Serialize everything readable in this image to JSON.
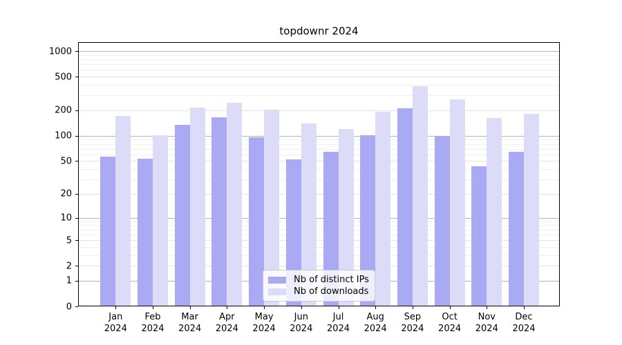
{
  "title": "topdownr 2024",
  "chart_data": {
    "type": "bar",
    "title": "topdownr 2024",
    "scale": "log1p",
    "categories": [
      "Jan",
      "Feb",
      "Mar",
      "Apr",
      "May",
      "Jun",
      "Jul",
      "Aug",
      "Sep",
      "Oct",
      "Nov",
      "Dec"
    ],
    "year": "2024",
    "series": [
      {
        "name": "Nb of distinct IPs",
        "color": "#a9a9f4",
        "values": [
          56,
          53,
          134,
          166,
          96,
          52,
          65,
          101,
          211,
          100,
          43,
          64
        ]
      },
      {
        "name": "Nb of downloads",
        "color": "#dcdcf9",
        "values": [
          173,
          101,
          216,
          245,
          202,
          140,
          120,
          191,
          383,
          268,
          162,
          182
        ]
      }
    ],
    "yticks": [
      0,
      1,
      2,
      5,
      10,
      20,
      50,
      100,
      200,
      500,
      1000
    ],
    "ylim": [
      0,
      1250
    ],
    "xlabel": "",
    "ylabel": "",
    "grid": true,
    "legend_position": "bottom-center"
  },
  "colors": {
    "grid_major": "#b3b3b3",
    "grid_mid": "#e3e3e3",
    "grid_minor": "#efefef",
    "spine": "#000000",
    "background": "#ffffff"
  }
}
